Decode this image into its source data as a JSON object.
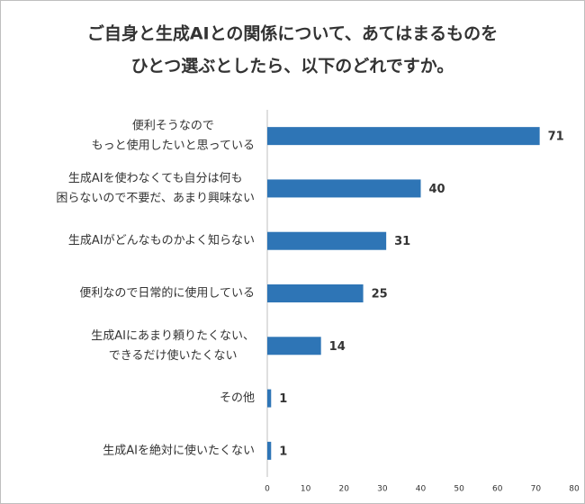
{
  "chart_data": {
    "type": "hbar",
    "title": [
      "ご自身と生成AIとの関係について、あてはまるものを",
      "ひとつ選ぶとしたら、以下のどれですか。"
    ],
    "categories": [
      [
        "便利そうなので",
        "もっと使用したいと思っている"
      ],
      [
        "生成AIを使わなくても自分は何も",
        "困らないので不要だ、あまり興味ない"
      ],
      [
        "生成AIがどんなものかよく知らない"
      ],
      [
        "便利なので日常的に使用している"
      ],
      [
        "生成AIにあまり頼りたくない、",
        "できるだけ使いたくない"
      ],
      [
        "その他"
      ],
      [
        "生成AIを絶対に使いたくない"
      ]
    ],
    "values": [
      71,
      40,
      31,
      25,
      14,
      1,
      1
    ],
    "color": "#2e75b6",
    "xlim": [
      0,
      80
    ],
    "xticks": [
      0,
      10,
      20,
      30,
      40,
      50,
      60,
      70,
      80
    ],
    "grid": false
  }
}
